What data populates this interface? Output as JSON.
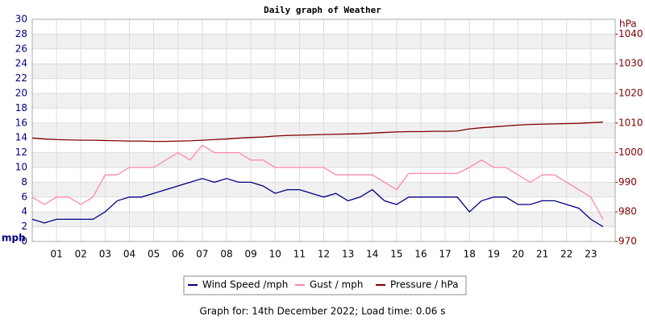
{
  "chart_data": {
    "type": "line",
    "title": "Daily graph of Weather",
    "y_label": "mph",
    "y2_label": "hPa",
    "footer": "Graph for: 14th December 2022; Load time: 0.06 s",
    "x": [
      0,
      0.5,
      1,
      1.5,
      2,
      2.5,
      3,
      3.5,
      4,
      4.5,
      5,
      5.5,
      6,
      6.5,
      7,
      7.5,
      8,
      8.5,
      9,
      9.5,
      10,
      10.5,
      11,
      11.5,
      12,
      12.5,
      13,
      13.5,
      14,
      14.5,
      15,
      15.5,
      16,
      16.5,
      17,
      17.5,
      18,
      18.5,
      19,
      19.5,
      20,
      20.5,
      21,
      21.5,
      22,
      22.5,
      23,
      23.5
    ],
    "xlim": [
      0,
      24
    ],
    "xticks": [
      {
        "value": 1,
        "label": "01"
      },
      {
        "value": 2,
        "label": "02"
      },
      {
        "value": 3,
        "label": "03"
      },
      {
        "value": 4,
        "label": "04"
      },
      {
        "value": 5,
        "label": "05"
      },
      {
        "value": 6,
        "label": "06"
      },
      {
        "value": 7,
        "label": "07"
      },
      {
        "value": 8,
        "label": "08"
      },
      {
        "value": 9,
        "label": "09"
      },
      10,
      11,
      12,
      13,
      14,
      15,
      16,
      17,
      18,
      19,
      20,
      21,
      22,
      23
    ],
    "ylim": [
      0,
      30
    ],
    "yticks": [
      0,
      2,
      4,
      6,
      8,
      10,
      12,
      14,
      16,
      18,
      20,
      22,
      24,
      26,
      28,
      30
    ],
    "y2lim": [
      970,
      1045
    ],
    "y2ticks": [
      970,
      980,
      990,
      1000,
      1010,
      1020,
      1030,
      1040
    ],
    "grid": true,
    "series": [
      {
        "name": "Wind Speed /mph",
        "color": "#000080",
        "values": [
          3,
          2.5,
          3,
          3,
          3,
          3,
          4,
          5.5,
          6,
          6,
          6.5,
          7,
          7.5,
          8,
          8.5,
          8,
          8.5,
          8,
          8,
          7.5,
          6.5,
          7,
          7,
          6.5,
          6,
          6.5,
          5.5,
          6,
          7,
          5.5,
          5,
          6,
          6,
          6,
          6,
          6,
          4,
          5.5,
          6,
          6,
          5,
          5,
          5.5,
          5.5,
          5,
          4.5,
          3,
          2
        ]
      },
      {
        "name": "Gust / mph",
        "color": "#ff88aa",
        "values": [
          6,
          5,
          6,
          6,
          5,
          6,
          9,
          9,
          10,
          10,
          10,
          11,
          12,
          11,
          13,
          12,
          12,
          12,
          11,
          11,
          10,
          10,
          10,
          10,
          10,
          9,
          9,
          9,
          9,
          8,
          7,
          9.2,
          9.2,
          9.2,
          9.2,
          9.2,
          10,
          11,
          10,
          10,
          9,
          8,
          9,
          9,
          8,
          7,
          6,
          3
        ]
      },
      {
        "name": "Pressure / hPa",
        "color": "#800000",
        "axis": "y2",
        "values": [
          1004.9,
          1004.6,
          1004.4,
          1004.3,
          1004.2,
          1004.2,
          1004.1,
          1004,
          1003.9,
          1003.9,
          1003.8,
          1003.8,
          1003.9,
          1004,
          1004.2,
          1004.4,
          1004.6,
          1004.9,
          1005.1,
          1005.3,
          1005.6,
          1005.8,
          1005.9,
          1006,
          1006.1,
          1006.2,
          1006.3,
          1006.4,
          1006.6,
          1006.8,
          1007,
          1007.1,
          1007.1,
          1007.2,
          1007.2,
          1007.3,
          1008,
          1008.4,
          1008.7,
          1009,
          1009.3,
          1009.5,
          1009.6,
          1009.7,
          1009.8,
          1009.9,
          1010.1,
          1010.3
        ]
      }
    ]
  }
}
